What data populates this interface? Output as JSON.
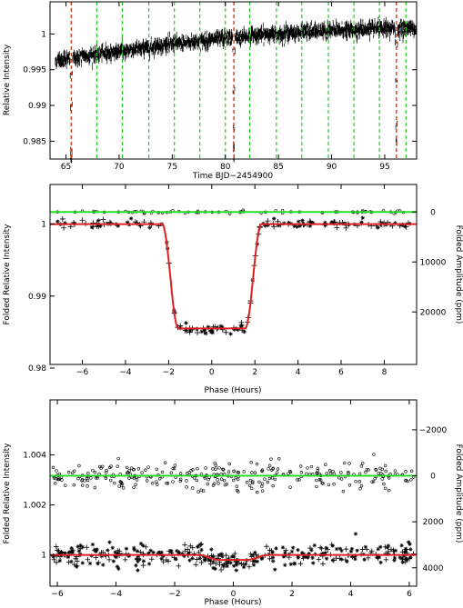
{
  "chart_data": [
    {
      "type": "scatter",
      "xlabel": "Time BJD−2454900",
      "ylabel": "Relative Intensity",
      "xlim": [
        63.5,
        98.0
      ],
      "ylim": [
        0.9825,
        1.0045
      ],
      "xticks": [
        65,
        70,
        75,
        80,
        85,
        90,
        95
      ],
      "yticks": [
        0.985,
        0.99,
        0.995,
        1
      ],
      "ytick_labels": [
        "0.985",
        "0.99",
        "0.995",
        "1"
      ],
      "colors": {
        "transit_markers": "#d0401a",
        "secondary_markers": "#22cc22",
        "data": "#000000"
      },
      "series": [
        {
          "kind": "light_curve",
          "trend": {
            "x": [
              64.0,
              70.0,
              75.0,
              80.0,
              85.0,
              90.0,
              95.0,
              98.0
            ],
            "y": [
              0.9963,
              0.9976,
              0.9986,
              0.9994,
              1.0001,
              1.0005,
              1.0007,
              1.0009
            ]
          },
          "noise": 0.00045,
          "transits": [
            {
              "center": 65.5,
              "depth": 0.016,
              "half_width": 0.12
            },
            {
              "center": 80.8,
              "depth": 0.016,
              "half_width": 0.12
            },
            {
              "center": 96.1,
              "depth": 0.016,
              "half_width": 0.12
            }
          ]
        }
      ],
      "vlines_transit": [
        65.5,
        80.8,
        96.1
      ],
      "vlines_secondary": [
        67.9,
        70.3,
        72.8,
        75.2,
        77.6,
        80.0,
        82.3,
        84.8,
        87.2,
        89.7,
        92.1,
        94.5,
        97.0
      ]
    },
    {
      "type": "scatter",
      "xlabel": "Phase (Hours)",
      "ylabel": "Folded Relative Intensity",
      "y2label": "Folded Amplitude (ppm)",
      "xlim": [
        -7.5,
        9.5
      ],
      "ylim": [
        0.9805,
        1.0055
      ],
      "y2lim": [
        30500,
        -5500
      ],
      "xticks": [
        -6,
        -4,
        -2,
        0,
        2,
        4,
        6,
        8
      ],
      "yticks": [
        0.98,
        0.99,
        1
      ],
      "ytick_labels": [
        "0.98",
        "0.99",
        "1"
      ],
      "y2ticks": [
        0,
        10000,
        20000
      ],
      "colors": {
        "model": "#e02020",
        "secondary_fit": "#22dd22",
        "data": "#000000"
      },
      "series": [
        {
          "name": "",
          "kind": "transit_fold",
          "model": {
            "depth": 0.0145,
            "t1": 2.3,
            "t2": 1.55
          },
          "baseline": 1.0,
          "noise": 0.0003
        },
        {
          "name": "",
          "kind": "secondary_fold",
          "baseline_ppm": 0,
          "noise_ppm": 180
        }
      ]
    },
    {
      "type": "scatter",
      "xlabel": "Phase (Hours)",
      "ylabel": "Folded Relative Intensity",
      "y2label": "Folded Amplitude (ppm)",
      "xlim": [
        -6.25,
        6.25
      ],
      "ylim": [
        0.99875,
        1.0062
      ],
      "y2lim": [
        4800,
        -3300
      ],
      "xticks": [
        -6,
        -4,
        -2,
        0,
        2,
        4,
        6
      ],
      "yticks": [
        1,
        1.002,
        1.004
      ],
      "ytick_labels": [
        "1",
        "1.002",
        "1.004"
      ],
      "y2ticks": [
        -2000,
        0,
        2000,
        4000
      ],
      "colors": {
        "model": "#e02020",
        "secondary_fit": "#22dd22",
        "data": "#000000"
      },
      "series": [
        {
          "name": "",
          "kind": "transit_fold_shallow",
          "model": {
            "depth": 0.0002,
            "t1": 1.2,
            "t2": 0.45
          },
          "baseline": 1.0,
          "noise": 0.00022
        },
        {
          "name": "",
          "kind": "secondary_fold",
          "baseline_ppm": 0,
          "noise_ppm": 300
        }
      ]
    }
  ]
}
